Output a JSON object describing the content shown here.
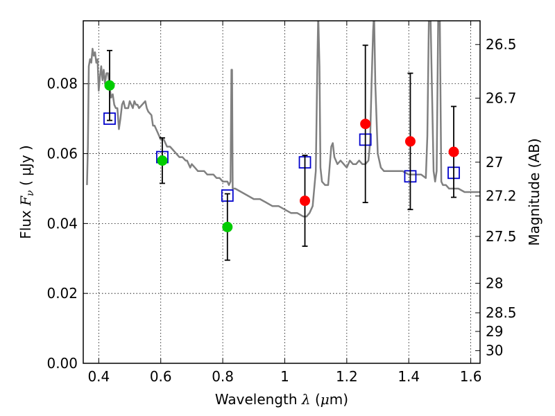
{
  "chart_data": {
    "type": "scatter",
    "xlabel": {
      "text": "Wavelength",
      "symbol": "λ",
      "unit_open": " (",
      "unit_mu": "μ",
      "unit_rest": "m)"
    },
    "ylabel": {
      "text": "Flux",
      "symbol": "F",
      "subscript": "ν",
      "unit": "( μJy )"
    },
    "y2label": "Magnitude (AB)",
    "xlim": [
      0.35,
      1.63
    ],
    "ylim": [
      0.0,
      0.098
    ],
    "grid": true,
    "x_ticks": [
      {
        "value": 0.4,
        "label": "0.4"
      },
      {
        "value": 0.6,
        "label": "0.6"
      },
      {
        "value": 0.8,
        "label": "0.8"
      },
      {
        "value": 1.0,
        "label": "1"
      },
      {
        "value": 1.2,
        "label": "1.2"
      },
      {
        "value": 1.4,
        "label": "1.4"
      },
      {
        "value": 1.6,
        "label": "1.6"
      }
    ],
    "y_ticks": [
      {
        "value": 0.0,
        "label": "0.00"
      },
      {
        "value": 0.02,
        "label": "0.02"
      },
      {
        "value": 0.04,
        "label": "0.04"
      },
      {
        "value": 0.06,
        "label": "0.06"
      },
      {
        "value": 0.08,
        "label": "0.08"
      }
    ],
    "y2_ticks": [
      {
        "value": 26.5,
        "label": "26.5"
      },
      {
        "value": 26.7,
        "label": "26.7"
      },
      {
        "value": 27.0,
        "label": "27"
      },
      {
        "value": 27.2,
        "label": "27.2"
      },
      {
        "value": 27.5,
        "label": "27.5"
      },
      {
        "value": 28.0,
        "label": "28"
      },
      {
        "value": 28.5,
        "label": "28.5"
      },
      {
        "value": 29.0,
        "label": "29"
      },
      {
        "value": 30.0,
        "label": "30"
      }
    ],
    "series": [
      {
        "kind": "spectrum",
        "color": "#808080",
        "points": [
          [
            0.362,
            0.051
          ],
          [
            0.365,
            0.062
          ],
          [
            0.368,
            0.085
          ],
          [
            0.372,
            0.087
          ],
          [
            0.376,
            0.086
          ],
          [
            0.38,
            0.09
          ],
          [
            0.384,
            0.088
          ],
          [
            0.388,
            0.089
          ],
          [
            0.392,
            0.086
          ],
          [
            0.396,
            0.087
          ],
          [
            0.4,
            0.078
          ],
          [
            0.404,
            0.082
          ],
          [
            0.408,
            0.085
          ],
          [
            0.412,
            0.081
          ],
          [
            0.416,
            0.084
          ],
          [
            0.42,
            0.08
          ],
          [
            0.425,
            0.083
          ],
          [
            0.43,
            0.083
          ],
          [
            0.435,
            0.079
          ],
          [
            0.44,
            0.076
          ],
          [
            0.445,
            0.077
          ],
          [
            0.45,
            0.074
          ],
          [
            0.455,
            0.073
          ],
          [
            0.46,
            0.073
          ],
          [
            0.465,
            0.067
          ],
          [
            0.47,
            0.07
          ],
          [
            0.475,
            0.074
          ],
          [
            0.48,
            0.075
          ],
          [
            0.485,
            0.073
          ],
          [
            0.49,
            0.073
          ],
          [
            0.495,
            0.073
          ],
          [
            0.5,
            0.075
          ],
          [
            0.505,
            0.074
          ],
          [
            0.51,
            0.073
          ],
          [
            0.515,
            0.075
          ],
          [
            0.52,
            0.074
          ],
          [
            0.525,
            0.074
          ],
          [
            0.53,
            0.073
          ],
          [
            0.54,
            0.074
          ],
          [
            0.55,
            0.075
          ],
          [
            0.555,
            0.073
          ],
          [
            0.56,
            0.072
          ],
          [
            0.57,
            0.071
          ],
          [
            0.575,
            0.068
          ],
          [
            0.58,
            0.068
          ],
          [
            0.59,
            0.066
          ],
          [
            0.6,
            0.064
          ],
          [
            0.61,
            0.064
          ],
          [
            0.62,
            0.062
          ],
          [
            0.63,
            0.062
          ],
          [
            0.64,
            0.061
          ],
          [
            0.65,
            0.06
          ],
          [
            0.66,
            0.059
          ],
          [
            0.67,
            0.059
          ],
          [
            0.68,
            0.058
          ],
          [
            0.685,
            0.058
          ],
          [
            0.69,
            0.057
          ],
          [
            0.695,
            0.056
          ],
          [
            0.7,
            0.057
          ],
          [
            0.71,
            0.056
          ],
          [
            0.72,
            0.055
          ],
          [
            0.73,
            0.055
          ],
          [
            0.74,
            0.055
          ],
          [
            0.75,
            0.054
          ],
          [
            0.76,
            0.054
          ],
          [
            0.77,
            0.054
          ],
          [
            0.78,
            0.053
          ],
          [
            0.79,
            0.053
          ],
          [
            0.8,
            0.052
          ],
          [
            0.81,
            0.052
          ],
          [
            0.815,
            0.052
          ],
          [
            0.82,
            0.051
          ],
          [
            0.825,
            0.052
          ],
          [
            0.828,
            0.084
          ],
          [
            0.83,
            0.084
          ],
          [
            0.832,
            0.05
          ],
          [
            0.84,
            0.05
          ],
          [
            0.86,
            0.049
          ],
          [
            0.88,
            0.048
          ],
          [
            0.9,
            0.047
          ],
          [
            0.92,
            0.047
          ],
          [
            0.94,
            0.046
          ],
          [
            0.96,
            0.045
          ],
          [
            0.98,
            0.045
          ],
          [
            1.0,
            0.044
          ],
          [
            1.02,
            0.043
          ],
          [
            1.04,
            0.043
          ],
          [
            1.06,
            0.042
          ],
          [
            1.07,
            0.042
          ],
          [
            1.08,
            0.043
          ],
          [
            1.09,
            0.045
          ],
          [
            1.1,
            0.055
          ],
          [
            1.105,
            0.085
          ],
          [
            1.108,
            0.1
          ],
          [
            1.112,
            0.085
          ],
          [
            1.115,
            0.056
          ],
          [
            1.12,
            0.052
          ],
          [
            1.13,
            0.051
          ],
          [
            1.14,
            0.051
          ],
          [
            1.15,
            0.062
          ],
          [
            1.155,
            0.063
          ],
          [
            1.16,
            0.059
          ],
          [
            1.17,
            0.057
          ],
          [
            1.18,
            0.058
          ],
          [
            1.19,
            0.057
          ],
          [
            1.2,
            0.056
          ],
          [
            1.21,
            0.058
          ],
          [
            1.22,
            0.057
          ],
          [
            1.23,
            0.057
          ],
          [
            1.24,
            0.058
          ],
          [
            1.25,
            0.057
          ],
          [
            1.26,
            0.057
          ],
          [
            1.27,
            0.058
          ],
          [
            1.275,
            0.063
          ],
          [
            1.28,
            0.08
          ],
          [
            1.285,
            0.095
          ],
          [
            1.288,
            0.1
          ],
          [
            1.292,
            0.08
          ],
          [
            1.3,
            0.06
          ],
          [
            1.31,
            0.056
          ],
          [
            1.32,
            0.055
          ],
          [
            1.33,
            0.055
          ],
          [
            1.34,
            0.055
          ],
          [
            1.36,
            0.055
          ],
          [
            1.38,
            0.055
          ],
          [
            1.4,
            0.054
          ],
          [
            1.42,
            0.054
          ],
          [
            1.44,
            0.054
          ],
          [
            1.455,
            0.053
          ],
          [
            1.46,
            0.065
          ],
          [
            1.465,
            0.1
          ],
          [
            1.47,
            0.1
          ],
          [
            1.48,
            0.055
          ],
          [
            1.485,
            0.052
          ],
          [
            1.49,
            0.055
          ],
          [
            1.495,
            0.1
          ],
          [
            1.5,
            0.1
          ],
          [
            1.505,
            0.052
          ],
          [
            1.51,
            0.051
          ],
          [
            1.52,
            0.051
          ],
          [
            1.53,
            0.05
          ],
          [
            1.54,
            0.05
          ],
          [
            1.55,
            0.05
          ],
          [
            1.56,
            0.05
          ],
          [
            1.58,
            0.049
          ],
          [
            1.6,
            0.049
          ],
          [
            1.63,
            0.049
          ]
        ]
      },
      {
        "kind": "model",
        "marker": "square",
        "color": "#0000cc",
        "x": [
          0.435,
          0.605,
          0.815,
          1.065,
          1.26,
          1.405,
          1.545
        ],
        "y": [
          0.07,
          0.059,
          0.048,
          0.0575,
          0.064,
          0.0535,
          0.0545
        ]
      },
      {
        "kind": "detection",
        "marker": "circle",
        "color": "#00cc00",
        "x": [
          0.435,
          0.605,
          0.815
        ],
        "y": [
          0.0795,
          0.058,
          0.039
        ],
        "yerr_low": [
          0.0695,
          0.0515,
          0.0295
        ],
        "yerr_high": [
          0.0895,
          0.0645,
          0.0485
        ]
      },
      {
        "kind": "detection",
        "marker": "circle",
        "color": "#ff0000",
        "x": [
          1.065,
          1.26,
          1.405,
          1.545
        ],
        "y": [
          0.0465,
          0.0685,
          0.0635,
          0.0605
        ],
        "yerr_low": [
          0.0335,
          0.046,
          0.044,
          0.0475
        ],
        "yerr_high": [
          0.0595,
          0.091,
          0.083,
          0.0735
        ]
      }
    ]
  }
}
